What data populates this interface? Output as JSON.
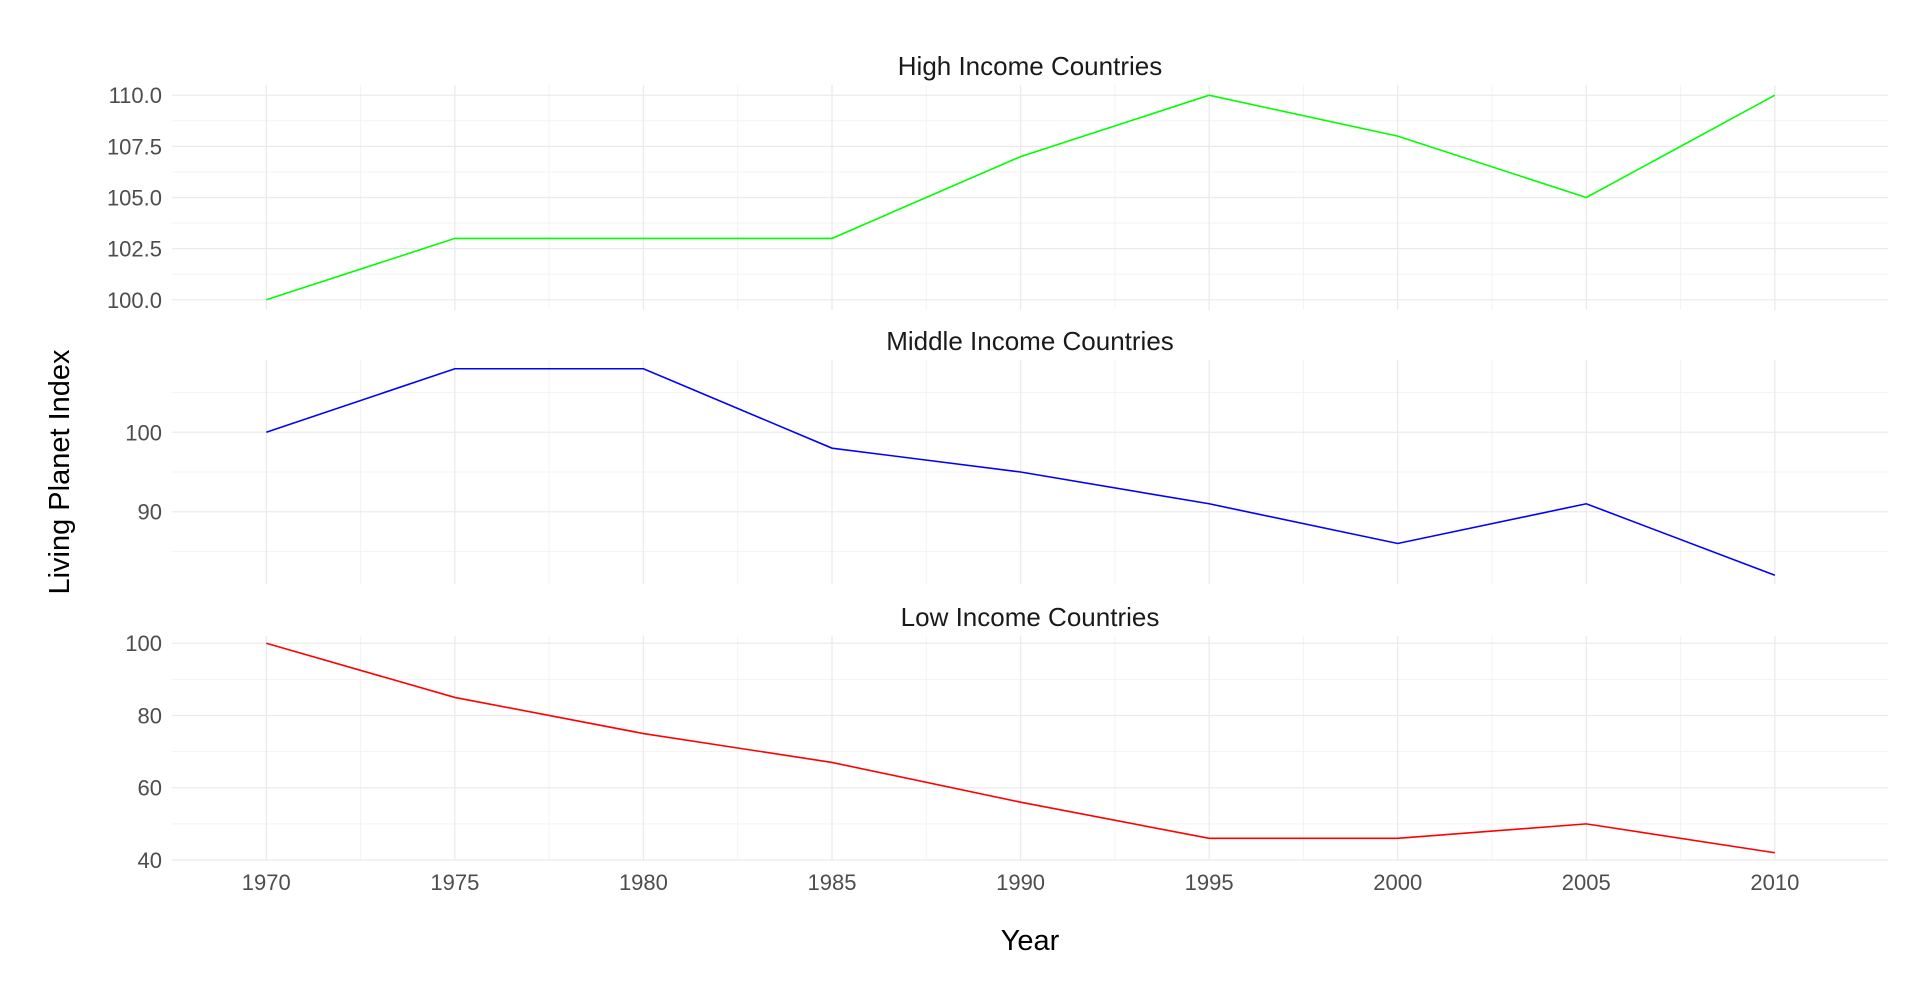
{
  "chart_data": {
    "type": "line",
    "xlabel": "Year",
    "ylabel": "Living Planet Index",
    "x": [
      1970,
      1975,
      1980,
      1985,
      1990,
      1995,
      2000,
      2005,
      2010
    ],
    "x_ticks": [
      "1970",
      "1975",
      "1980",
      "1985",
      "1990",
      "1995",
      "2000",
      "2005",
      "2010"
    ],
    "xlim": [
      1967.5,
      2013
    ],
    "grid": true,
    "legend": "none",
    "panels": [
      {
        "title": "High Income Countries",
        "color": "#00ff00",
        "values": [
          100,
          103,
          103,
          103,
          107,
          110,
          108,
          105,
          110
        ],
        "ylim": [
          99.5,
          110.5
        ],
        "y_ticks": [
          100.0,
          102.5,
          105.0,
          107.5,
          110.0
        ],
        "y_tick_labels": [
          "100.0",
          "102.5",
          "105.0",
          "107.5",
          "110.0"
        ]
      },
      {
        "title": "Middle Income Countries",
        "color": "#0000ff",
        "values": [
          100,
          108,
          108,
          98,
          95,
          91,
          86,
          91,
          82
        ],
        "ylim": [
          80.9,
          109.1
        ],
        "y_ticks": [
          90,
          100
        ],
        "y_tick_labels": [
          "90",
          "100"
        ]
      },
      {
        "title": "Low Income Countries",
        "color": "#ff0000",
        "values": [
          100,
          85,
          75,
          67,
          56,
          46,
          46,
          50,
          42
        ],
        "ylim": [
          40,
          102
        ],
        "y_ticks": [
          40,
          60,
          80,
          100
        ],
        "y_tick_labels": [
          "40",
          "60",
          "80",
          "100"
        ]
      }
    ]
  }
}
